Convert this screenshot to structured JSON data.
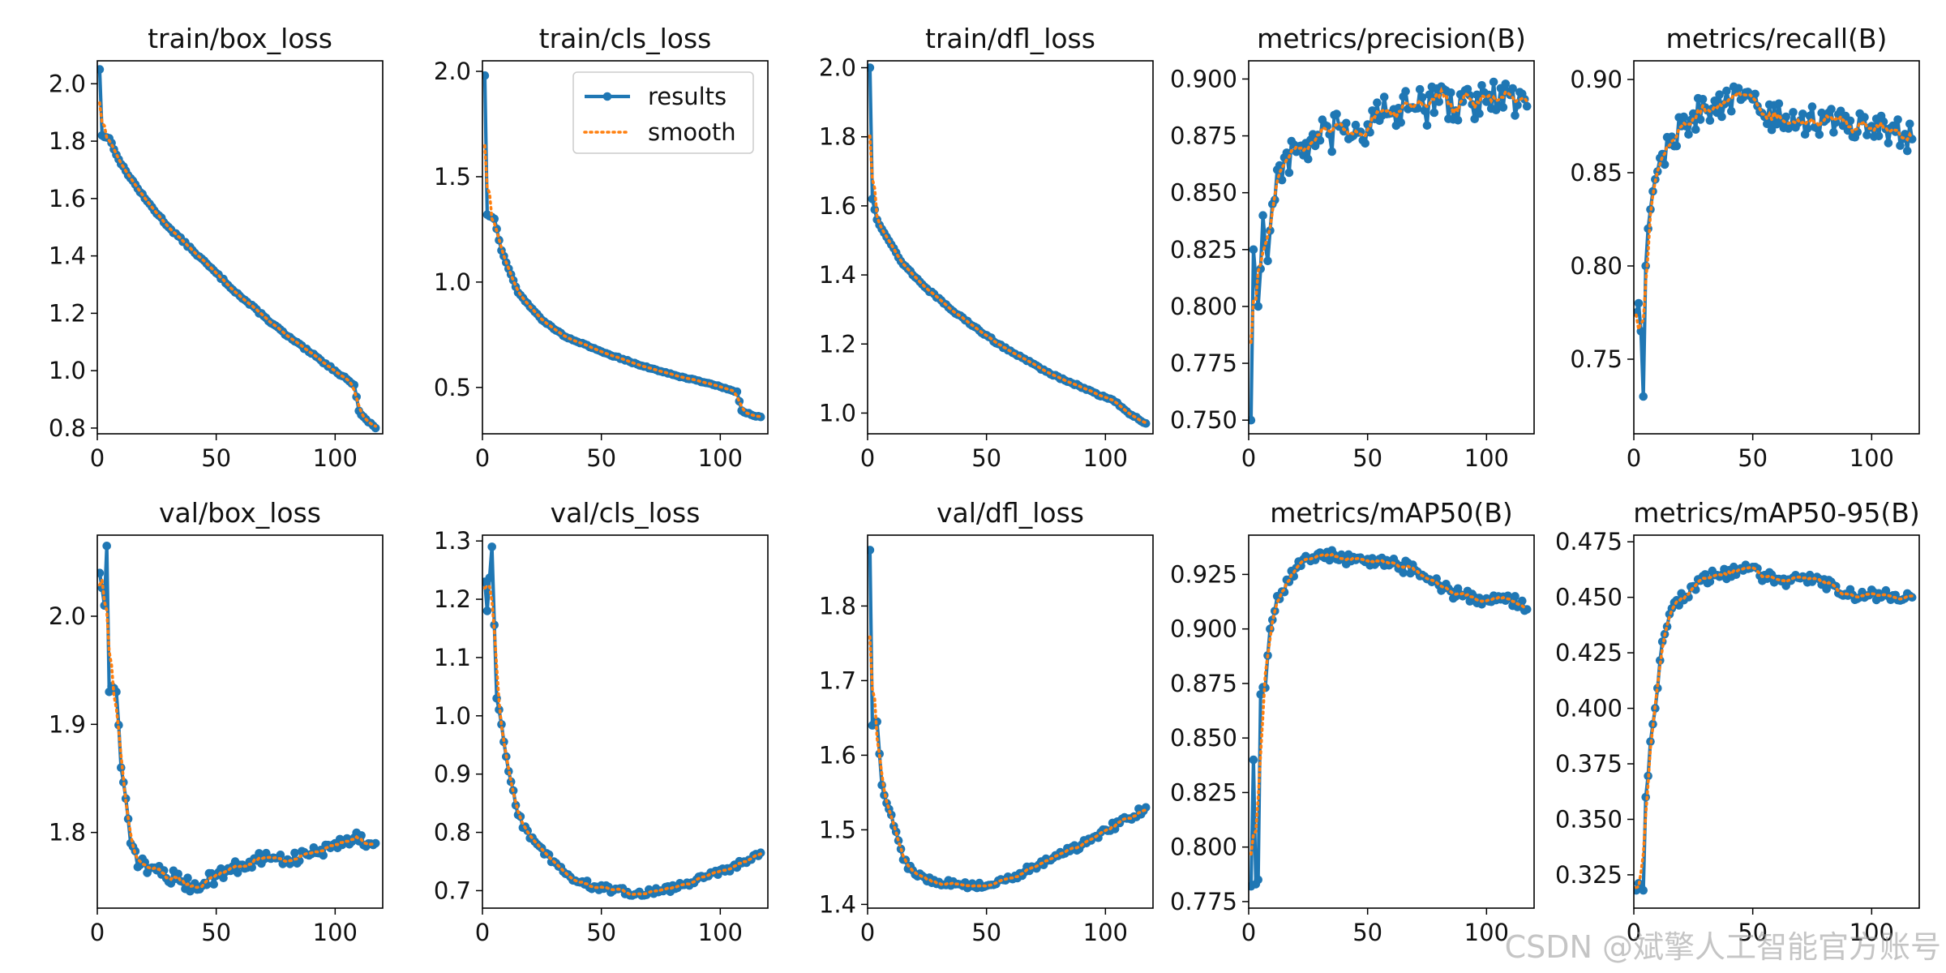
{
  "watermark": "CSDN @斌擎人工智能官方账号",
  "legend": {
    "results": "results",
    "smooth": "smooth"
  },
  "colors": {
    "results": "#1f77b4",
    "smooth": "#ff7f0e"
  },
  "chart_data": [
    {
      "type": "line",
      "title": "train/box_loss",
      "xlim": [
        0,
        120
      ],
      "ylim": [
        0.78,
        2.08
      ],
      "xticks": [
        0,
        50,
        100
      ],
      "yticks": [
        0.8,
        1.0,
        1.2,
        1.4,
        1.6,
        1.8,
        2.0
      ],
      "ytick_labels": [
        "0.8",
        "1.0",
        "1.2",
        "1.4",
        "1.6",
        "1.8",
        "2.0"
      ],
      "anchors": [
        [
          1,
          2.05
        ],
        [
          2,
          1.82
        ],
        [
          5,
          1.81
        ],
        [
          10,
          1.72
        ],
        [
          20,
          1.6
        ],
        [
          30,
          1.5
        ],
        [
          40,
          1.42
        ],
        [
          50,
          1.34
        ],
        [
          60,
          1.26
        ],
        [
          70,
          1.19
        ],
        [
          80,
          1.12
        ],
        [
          90,
          1.06
        ],
        [
          100,
          1.0
        ],
        [
          105,
          0.97
        ],
        [
          108,
          0.95
        ],
        [
          110,
          0.86
        ],
        [
          113,
          0.83
        ],
        [
          117,
          0.8
        ]
      ],
      "noise": 0.004
    },
    {
      "type": "line",
      "title": "train/cls_loss",
      "xlim": [
        0,
        120
      ],
      "ylim": [
        0.28,
        2.05
      ],
      "xticks": [
        0,
        50,
        100
      ],
      "yticks": [
        0.5,
        1.0,
        1.5,
        2.0
      ],
      "ytick_labels": [
        "0.5",
        "1.0",
        "1.5",
        "2.0"
      ],
      "legend": true,
      "anchors": [
        [
          1,
          1.98
        ],
        [
          2,
          1.32
        ],
        [
          5,
          1.3
        ],
        [
          8,
          1.15
        ],
        [
          15,
          0.95
        ],
        [
          25,
          0.82
        ],
        [
          35,
          0.74
        ],
        [
          50,
          0.67
        ],
        [
          65,
          0.61
        ],
        [
          80,
          0.56
        ],
        [
          95,
          0.52
        ],
        [
          107,
          0.48
        ],
        [
          109,
          0.39
        ],
        [
          113,
          0.37
        ],
        [
          117,
          0.36
        ]
      ],
      "noise": 0.003
    },
    {
      "type": "line",
      "title": "train/dfl_loss",
      "xlim": [
        0,
        120
      ],
      "ylim": [
        0.94,
        2.02
      ],
      "xticks": [
        0,
        50,
        100
      ],
      "yticks": [
        1.0,
        1.2,
        1.4,
        1.6,
        1.8,
        2.0
      ],
      "ytick_labels": [
        "1.0",
        "1.2",
        "1.4",
        "1.6",
        "1.8",
        "2.0"
      ],
      "anchors": [
        [
          1,
          2.0
        ],
        [
          2,
          1.62
        ],
        [
          4,
          1.56
        ],
        [
          8,
          1.51
        ],
        [
          15,
          1.43
        ],
        [
          25,
          1.36
        ],
        [
          35,
          1.3
        ],
        [
          45,
          1.25
        ],
        [
          55,
          1.2
        ],
        [
          65,
          1.16
        ],
        [
          75,
          1.12
        ],
        [
          85,
          1.09
        ],
        [
          95,
          1.06
        ],
        [
          105,
          1.03
        ],
        [
          108,
          1.01
        ],
        [
          112,
          0.99
        ],
        [
          117,
          0.97
        ]
      ],
      "noise": 0.003
    },
    {
      "type": "line",
      "title": "metrics/precision(B)",
      "xlim": [
        0,
        120
      ],
      "ylim": [
        0.744,
        0.908
      ],
      "xticks": [
        0,
        50,
        100
      ],
      "yticks": [
        0.75,
        0.775,
        0.8,
        0.825,
        0.85,
        0.875,
        0.9
      ],
      "ytick_labels": [
        "0.750",
        "0.775",
        "0.800",
        "0.825",
        "0.850",
        "0.875",
        "0.900"
      ],
      "anchors": [
        [
          1,
          0.75
        ],
        [
          2,
          0.825
        ],
        [
          4,
          0.8
        ],
        [
          6,
          0.84
        ],
        [
          8,
          0.82
        ],
        [
          10,
          0.845
        ],
        [
          13,
          0.862
        ],
        [
          20,
          0.868
        ],
        [
          30,
          0.873
        ],
        [
          40,
          0.877
        ],
        [
          50,
          0.88
        ],
        [
          60,
          0.885
        ],
        [
          70,
          0.887
        ],
        [
          80,
          0.89
        ],
        [
          90,
          0.89
        ],
        [
          100,
          0.89
        ],
        [
          110,
          0.893
        ],
        [
          117,
          0.888
        ]
      ],
      "noise": 0.009
    },
    {
      "type": "line",
      "title": "metrics/recall(B)",
      "xlim": [
        0,
        120
      ],
      "ylim": [
        0.71,
        0.91
      ],
      "xticks": [
        0,
        50,
        100
      ],
      "yticks": [
        0.75,
        0.8,
        0.85,
        0.9
      ],
      "ytick_labels": [
        "0.75",
        "0.80",
        "0.85",
        "0.90"
      ],
      "anchors": [
        [
          1,
          0.775
        ],
        [
          2,
          0.78
        ],
        [
          3,
          0.765
        ],
        [
          4,
          0.73
        ],
        [
          5,
          0.8
        ],
        [
          6,
          0.82
        ],
        [
          8,
          0.84
        ],
        [
          12,
          0.86
        ],
        [
          20,
          0.875
        ],
        [
          30,
          0.885
        ],
        [
          40,
          0.888
        ],
        [
          47,
          0.893
        ],
        [
          55,
          0.88
        ],
        [
          70,
          0.878
        ],
        [
          85,
          0.877
        ],
        [
          100,
          0.875
        ],
        [
          110,
          0.872
        ],
        [
          117,
          0.868
        ]
      ],
      "noise": 0.008
    },
    {
      "type": "line",
      "title": "val/box_loss",
      "xlim": [
        0,
        120
      ],
      "ylim": [
        1.73,
        2.075
      ],
      "xticks": [
        0,
        50,
        100
      ],
      "yticks": [
        1.8,
        1.9,
        2.0
      ],
      "ytick_labels": [
        "1.8",
        "1.9",
        "2.0"
      ],
      "anchors": [
        [
          1,
          2.04
        ],
        [
          3,
          2.01
        ],
        [
          4,
          2.065
        ],
        [
          5,
          1.93
        ],
        [
          8,
          1.93
        ],
        [
          10,
          1.86
        ],
        [
          14,
          1.79
        ],
        [
          18,
          1.77
        ],
        [
          25,
          1.765
        ],
        [
          35,
          1.755
        ],
        [
          40,
          1.75
        ],
        [
          50,
          1.76
        ],
        [
          60,
          1.77
        ],
        [
          70,
          1.775
        ],
        [
          80,
          1.775
        ],
        [
          90,
          1.78
        ],
        [
          100,
          1.79
        ],
        [
          108,
          1.795
        ],
        [
          117,
          1.79
        ]
      ],
      "noise": 0.007
    },
    {
      "type": "line",
      "title": "val/cls_loss",
      "xlim": [
        0,
        120
      ],
      "ylim": [
        0.67,
        1.31
      ],
      "xticks": [
        0,
        50,
        100
      ],
      "yticks": [
        0.7,
        0.8,
        0.9,
        1.0,
        1.1,
        1.2,
        1.3
      ],
      "ytick_labels": [
        "0.7",
        "0.8",
        "0.9",
        "1.0",
        "1.1",
        "1.2",
        "1.3"
      ],
      "anchors": [
        [
          1,
          1.23
        ],
        [
          2,
          1.18
        ],
        [
          4,
          1.29
        ],
        [
          6,
          1.03
        ],
        [
          10,
          0.93
        ],
        [
          15,
          0.83
        ],
        [
          20,
          0.79
        ],
        [
          30,
          0.75
        ],
        [
          40,
          0.715
        ],
        [
          55,
          0.7
        ],
        [
          65,
          0.695
        ],
        [
          75,
          0.7
        ],
        [
          85,
          0.71
        ],
        [
          95,
          0.725
        ],
        [
          105,
          0.74
        ],
        [
          110,
          0.75
        ],
        [
          117,
          0.765
        ]
      ],
      "noise": 0.006
    },
    {
      "type": "line",
      "title": "val/dfl_loss",
      "xlim": [
        0,
        120
      ],
      "ylim": [
        1.395,
        1.895
      ],
      "xticks": [
        0,
        50,
        100
      ],
      "yticks": [
        1.4,
        1.5,
        1.6,
        1.7,
        1.8
      ],
      "ytick_labels": [
        "1.4",
        "1.5",
        "1.6",
        "1.7",
        "1.8"
      ],
      "anchors": [
        [
          1,
          1.875
        ],
        [
          2,
          1.64
        ],
        [
          4,
          1.645
        ],
        [
          6,
          1.56
        ],
        [
          10,
          1.52
        ],
        [
          15,
          1.46
        ],
        [
          20,
          1.44
        ],
        [
          30,
          1.43
        ],
        [
          40,
          1.425
        ],
        [
          50,
          1.425
        ],
        [
          60,
          1.435
        ],
        [
          70,
          1.45
        ],
        [
          80,
          1.465
        ],
        [
          90,
          1.48
        ],
        [
          100,
          1.5
        ],
        [
          110,
          1.515
        ],
        [
          117,
          1.53
        ]
      ],
      "noise": 0.005
    },
    {
      "type": "line",
      "title": "metrics/mAP50(B)",
      "xlim": [
        0,
        120
      ],
      "ylim": [
        0.772,
        0.943
      ],
      "xticks": [
        0,
        50,
        100
      ],
      "yticks": [
        0.775,
        0.8,
        0.825,
        0.85,
        0.875,
        0.9,
        0.925
      ],
      "ytick_labels": [
        "0.775",
        "0.800",
        "0.825",
        "0.850",
        "0.875",
        "0.900",
        "0.925"
      ],
      "anchors": [
        [
          1,
          0.782
        ],
        [
          2,
          0.84
        ],
        [
          3,
          0.783
        ],
        [
          4,
          0.785
        ],
        [
          5,
          0.87
        ],
        [
          7,
          0.873
        ],
        [
          9,
          0.9
        ],
        [
          12,
          0.915
        ],
        [
          20,
          0.928
        ],
        [
          30,
          0.935
        ],
        [
          40,
          0.932
        ],
        [
          50,
          0.932
        ],
        [
          60,
          0.93
        ],
        [
          70,
          0.927
        ],
        [
          80,
          0.92
        ],
        [
          90,
          0.915
        ],
        [
          100,
          0.914
        ],
        [
          110,
          0.914
        ],
        [
          117,
          0.909
        ]
      ],
      "noise": 0.003
    },
    {
      "type": "line",
      "title": "metrics/mAP50-95(B)",
      "xlim": [
        0,
        120
      ],
      "ylim": [
        0.31,
        0.478
      ],
      "xticks": [
        0,
        50,
        100
      ],
      "yticks": [
        0.325,
        0.35,
        0.375,
        0.4,
        0.425,
        0.45,
        0.475
      ],
      "ytick_labels": [
        "0.325",
        "0.350",
        "0.375",
        "0.400",
        "0.425",
        "0.450",
        "0.475"
      ],
      "anchors": [
        [
          1,
          0.318
        ],
        [
          3,
          0.32
        ],
        [
          4,
          0.318
        ],
        [
          5,
          0.36
        ],
        [
          7,
          0.385
        ],
        [
          9,
          0.4
        ],
        [
          12,
          0.43
        ],
        [
          16,
          0.445
        ],
        [
          25,
          0.455
        ],
        [
          35,
          0.46
        ],
        [
          45,
          0.463
        ],
        [
          55,
          0.46
        ],
        [
          65,
          0.458
        ],
        [
          75,
          0.457
        ],
        [
          85,
          0.455
        ],
        [
          95,
          0.45
        ],
        [
          105,
          0.451
        ],
        [
          110,
          0.451
        ],
        [
          117,
          0.45
        ]
      ],
      "noise": 0.003
    }
  ]
}
